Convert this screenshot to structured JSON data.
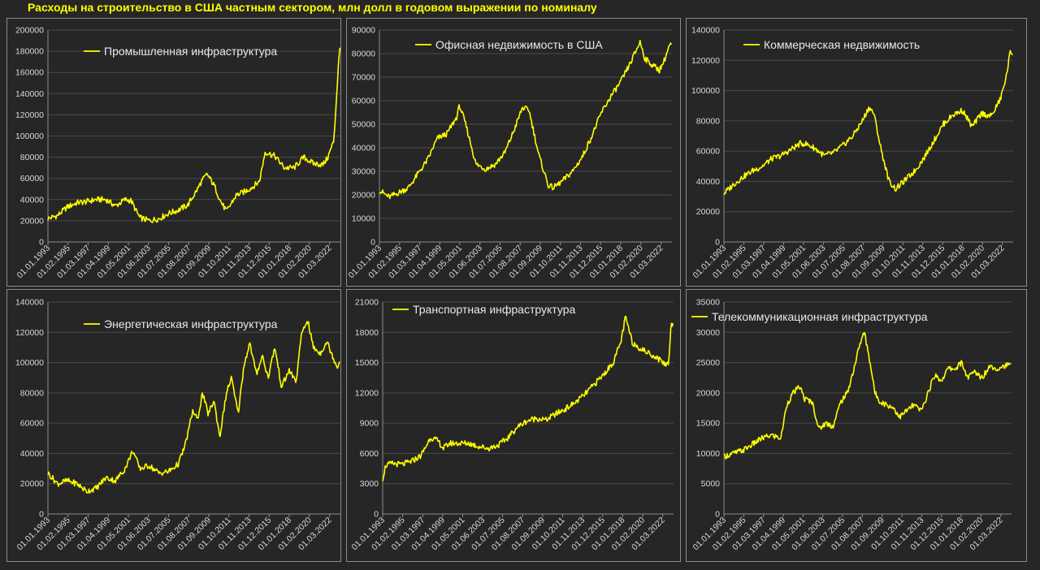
{
  "page": {
    "title": "Расходы на строительство в США частным сектором, млн долл в годовом выражении по номиналу"
  },
  "colors": {
    "background": "#262626",
    "series": "#ffff00",
    "text": "#d9d9d9",
    "border": "#8c8c8c",
    "grid": "#4a4a4a"
  },
  "x_tick_labels": [
    "01.01.1993",
    "01.02.1995",
    "01.03.1997",
    "01.04.1999",
    "01.05.2001",
    "01.06.2003",
    "01.07.2005",
    "01.08.2007",
    "01.09.2009",
    "01.10.2011",
    "01.11.2013",
    "01.12.2015",
    "01.01.2018",
    "01.02.2020",
    "01.03.2022"
  ],
  "chart_data": [
    {
      "type": "line",
      "title": "",
      "series": [
        {
          "name": "Промышленная инфраструктура",
          "x": [
            1993.0,
            1994.0,
            1995.0,
            1996.0,
            1997.0,
            1998.0,
            1999.0,
            2000.0,
            2001.0,
            2001.6,
            2002.5,
            2003.5,
            2004.5,
            2005.5,
            2006.5,
            2007.5,
            2008.5,
            2008.9,
            2009.5,
            2010.3,
            2010.9,
            2011.5,
            2012.5,
            2013.5,
            2014.2,
            2014.9,
            2015.5,
            2016.5,
            2017.5,
            2018.5,
            2019.5,
            2020.5,
            2021.5,
            2022.0,
            2022.6,
            2022.9,
            2023.1,
            2023.3
          ],
          "values": [
            22000,
            25000,
            33000,
            37000,
            38000,
            40000,
            40000,
            34000,
            40000,
            39000,
            23000,
            20000,
            22000,
            27000,
            30000,
            35000,
            50000,
            57000,
            64000,
            52000,
            38000,
            29000,
            44000,
            48000,
            52000,
            57000,
            85000,
            81000,
            70000,
            70000,
            80000,
            74000,
            73000,
            80000,
            95000,
            137000,
            168000,
            188000
          ]
        }
      ],
      "ylim": [
        0,
        200000
      ],
      "yticks": [
        0,
        20000,
        40000,
        60000,
        80000,
        100000,
        120000,
        140000,
        160000,
        180000,
        200000
      ],
      "legend": "top-center"
    },
    {
      "type": "line",
      "title": "",
      "series": [
        {
          "name": "Офисная недвижимость в США",
          "x": [
            1993.0,
            1994.0,
            1995.0,
            1996.0,
            1997.0,
            1998.0,
            1999.0,
            2000.0,
            2001.0,
            2001.3,
            2002.0,
            2003.0,
            2004.0,
            2005.0,
            2006.0,
            2007.0,
            2007.8,
            2008.5,
            2009.5,
            2010.5,
            2011.0,
            2012.0,
            2013.0,
            2014.0,
            2015.0,
            2016.0,
            2017.0,
            2018.0,
            2019.0,
            2020.0,
            2020.5,
            2021.0,
            2022.0,
            2022.5,
            2023.0,
            2023.3
          ],
          "values": [
            22000,
            19000,
            21000,
            23000,
            29000,
            35000,
            44000,
            46000,
            53000,
            58000,
            49000,
            33000,
            31000,
            33000,
            38000,
            48000,
            57000,
            56000,
            37000,
            24000,
            23000,
            26000,
            30000,
            36000,
            45000,
            55000,
            62000,
            68000,
            76000,
            85000,
            78000,
            76000,
            73000,
            77000,
            83000,
            84000
          ]
        }
      ],
      "ylim": [
        0,
        90000
      ],
      "yticks": [
        0,
        10000,
        20000,
        30000,
        40000,
        50000,
        60000,
        70000,
        80000,
        90000
      ],
      "legend": "top-center"
    },
    {
      "type": "line",
      "title": "",
      "series": [
        {
          "name": "Коммерческая недвижимость",
          "x": [
            1993.0,
            1994.0,
            1995.0,
            1996.0,
            1997.0,
            1998.0,
            1999.0,
            2000.0,
            2001.0,
            2001.5,
            2002.5,
            2003.5,
            2004.5,
            2005.5,
            2006.5,
            2007.5,
            2008.2,
            2008.7,
            2009.5,
            2010.3,
            2011.0,
            2012.0,
            2013.0,
            2014.0,
            2015.0,
            2016.0,
            2017.0,
            2018.0,
            2019.0,
            2020.0,
            2021.0,
            2022.0,
            2022.6,
            2023.0,
            2023.3
          ],
          "values": [
            32000,
            38000,
            43000,
            47000,
            50000,
            55000,
            57000,
            61000,
            65000,
            65000,
            62000,
            57000,
            59000,
            64000,
            70000,
            80000,
            89000,
            85000,
            60000,
            40000,
            35000,
            41000,
            47000,
            56000,
            67000,
            78000,
            84000,
            87000,
            76000,
            85000,
            83000,
            95000,
            110000,
            126000,
            124000
          ]
        }
      ],
      "ylim": [
        0,
        140000
      ],
      "yticks": [
        0,
        20000,
        40000,
        60000,
        80000,
        100000,
        120000,
        140000
      ],
      "legend": "top-center"
    },
    {
      "type": "line",
      "title": "",
      "series": [
        {
          "name": "Энергетическая инфраструктура",
          "x": [
            1993.0,
            1994.0,
            1995.0,
            1996.0,
            1997.0,
            1998.0,
            1999.0,
            2000.0,
            2001.0,
            2001.8,
            2002.5,
            2003.5,
            2004.5,
            2005.5,
            2006.5,
            2007.2,
            2008.0,
            2008.5,
            2009.0,
            2009.6,
            2010.2,
            2010.8,
            2011.5,
            2012.0,
            2012.7,
            2013.3,
            2013.9,
            2014.6,
            2015.2,
            2015.8,
            2016.5,
            2017.2,
            2018.0,
            2018.7,
            2019.3,
            2019.9,
            2020.5,
            2021.2,
            2021.9,
            2022.5,
            2023.0,
            2023.3
          ],
          "values": [
            27000,
            20000,
            22000,
            20000,
            15000,
            17000,
            24000,
            22000,
            30000,
            42000,
            30000,
            32000,
            27000,
            28000,
            33000,
            45000,
            68000,
            62000,
            80000,
            66000,
            75000,
            51000,
            80000,
            90000,
            66000,
            98000,
            113000,
            92000,
            105000,
            90000,
            110000,
            84000,
            95000,
            87000,
            120000,
            128000,
            110000,
            106000,
            114000,
            104000,
            97000,
            102000
          ]
        }
      ],
      "ylim": [
        0,
        140000
      ],
      "yticks": [
        0,
        20000,
        40000,
        60000,
        80000,
        100000,
        120000,
        140000
      ],
      "legend": "top-center"
    },
    {
      "type": "line",
      "title": "",
      "series": [
        {
          "name": "Транспортная инфраструктура",
          "x": [
            1993.0,
            1993.3,
            1994.0,
            1995.0,
            1996.0,
            1997.0,
            1998.0,
            1998.8,
            1999.3,
            2000.0,
            2001.0,
            2002.0,
            2003.0,
            2004.0,
            2005.0,
            2006.0,
            2007.0,
            2008.0,
            2009.0,
            2010.0,
            2011.0,
            2012.0,
            2013.0,
            2014.0,
            2015.0,
            2016.0,
            2017.0,
            2017.8,
            2018.3,
            2019.0,
            2020.0,
            2021.0,
            2022.0,
            2022.5,
            2022.8,
            2023.0,
            2023.3
          ],
          "values": [
            3500,
            4800,
            5000,
            4900,
            5200,
            5800,
            7600,
            7200,
            6500,
            7000,
            7000,
            7000,
            6700,
            6500,
            6800,
            7500,
            8600,
            9200,
            9500,
            9300,
            9900,
            10400,
            11000,
            11800,
            12800,
            13800,
            15000,
            17000,
            19500,
            17000,
            16300,
            15800,
            15200,
            14800,
            15000,
            18500,
            19200
          ]
        }
      ],
      "ylim": [
        0,
        21000
      ],
      "yticks": [
        0,
        3000,
        6000,
        9000,
        12000,
        15000,
        18000,
        21000
      ],
      "legend": "top-center"
    },
    {
      "type": "line",
      "title": "",
      "series": [
        {
          "name": "Телекоммуникационная инфраструктура",
          "x": [
            1993.0,
            1994.0,
            1995.0,
            1996.0,
            1997.0,
            1998.0,
            1999.0,
            1999.6,
            2000.3,
            2001.0,
            2001.5,
            2002.3,
            2003.0,
            2003.7,
            2004.5,
            2005.3,
            2006.0,
            2006.7,
            2007.3,
            2007.8,
            2008.4,
            2008.9,
            2009.5,
            2010.2,
            2010.9,
            2011.5,
            2012.2,
            2013.0,
            2013.8,
            2014.5,
            2015.2,
            2015.9,
            2016.6,
            2017.4,
            2018.0,
            2018.7,
            2019.4,
            2020.2,
            2021.0,
            2021.8,
            2022.6,
            2023.3
          ],
          "values": [
            9500,
            10000,
            10500,
            11500,
            12500,
            13000,
            12500,
            18000,
            20000,
            21000,
            19000,
            18500,
            14000,
            15000,
            14500,
            18500,
            20000,
            24000,
            28000,
            30000,
            25000,
            20000,
            18500,
            18000,
            17500,
            16000,
            17000,
            18000,
            17000,
            20000,
            23000,
            22000,
            24000,
            24000,
            25000,
            22500,
            23500,
            22500,
            24500,
            24000,
            24500,
            24500
          ]
        }
      ],
      "ylim": [
        0,
        35000
      ],
      "yticks": [
        0,
        5000,
        10000,
        15000,
        20000,
        25000,
        30000,
        35000
      ],
      "legend": "top-center"
    }
  ]
}
